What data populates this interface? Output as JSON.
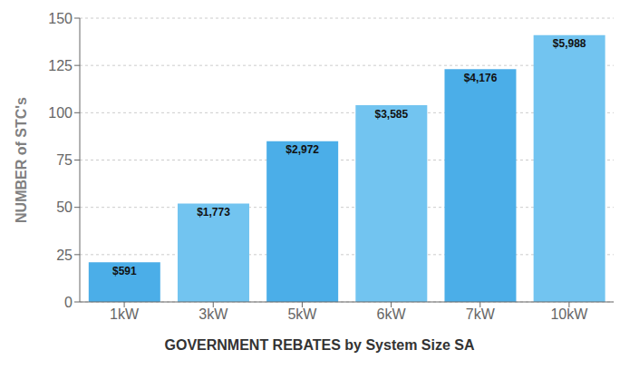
{
  "chart_data": {
    "type": "bar",
    "title": "GOVERNMENT REBATES by System Size SA",
    "ylabel": "NUMBER of STC's",
    "categories": [
      "1kW",
      "3kW",
      "5kW",
      "6kW",
      "7kW",
      "10kW"
    ],
    "values": [
      21,
      52,
      85,
      104,
      123,
      141
    ],
    "annotations": [
      "$591",
      "$1,773",
      "$2,972",
      "$3,585",
      "$4,176",
      "$5,988"
    ],
    "colors": [
      "#4baee8",
      "#72c4f0",
      "#4baee8",
      "#72c4f0",
      "#4baee8",
      "#72c4f0"
    ],
    "ylim": [
      0,
      150
    ],
    "yticks": [
      0,
      25,
      50,
      75,
      100,
      125,
      150
    ],
    "grid": true
  }
}
